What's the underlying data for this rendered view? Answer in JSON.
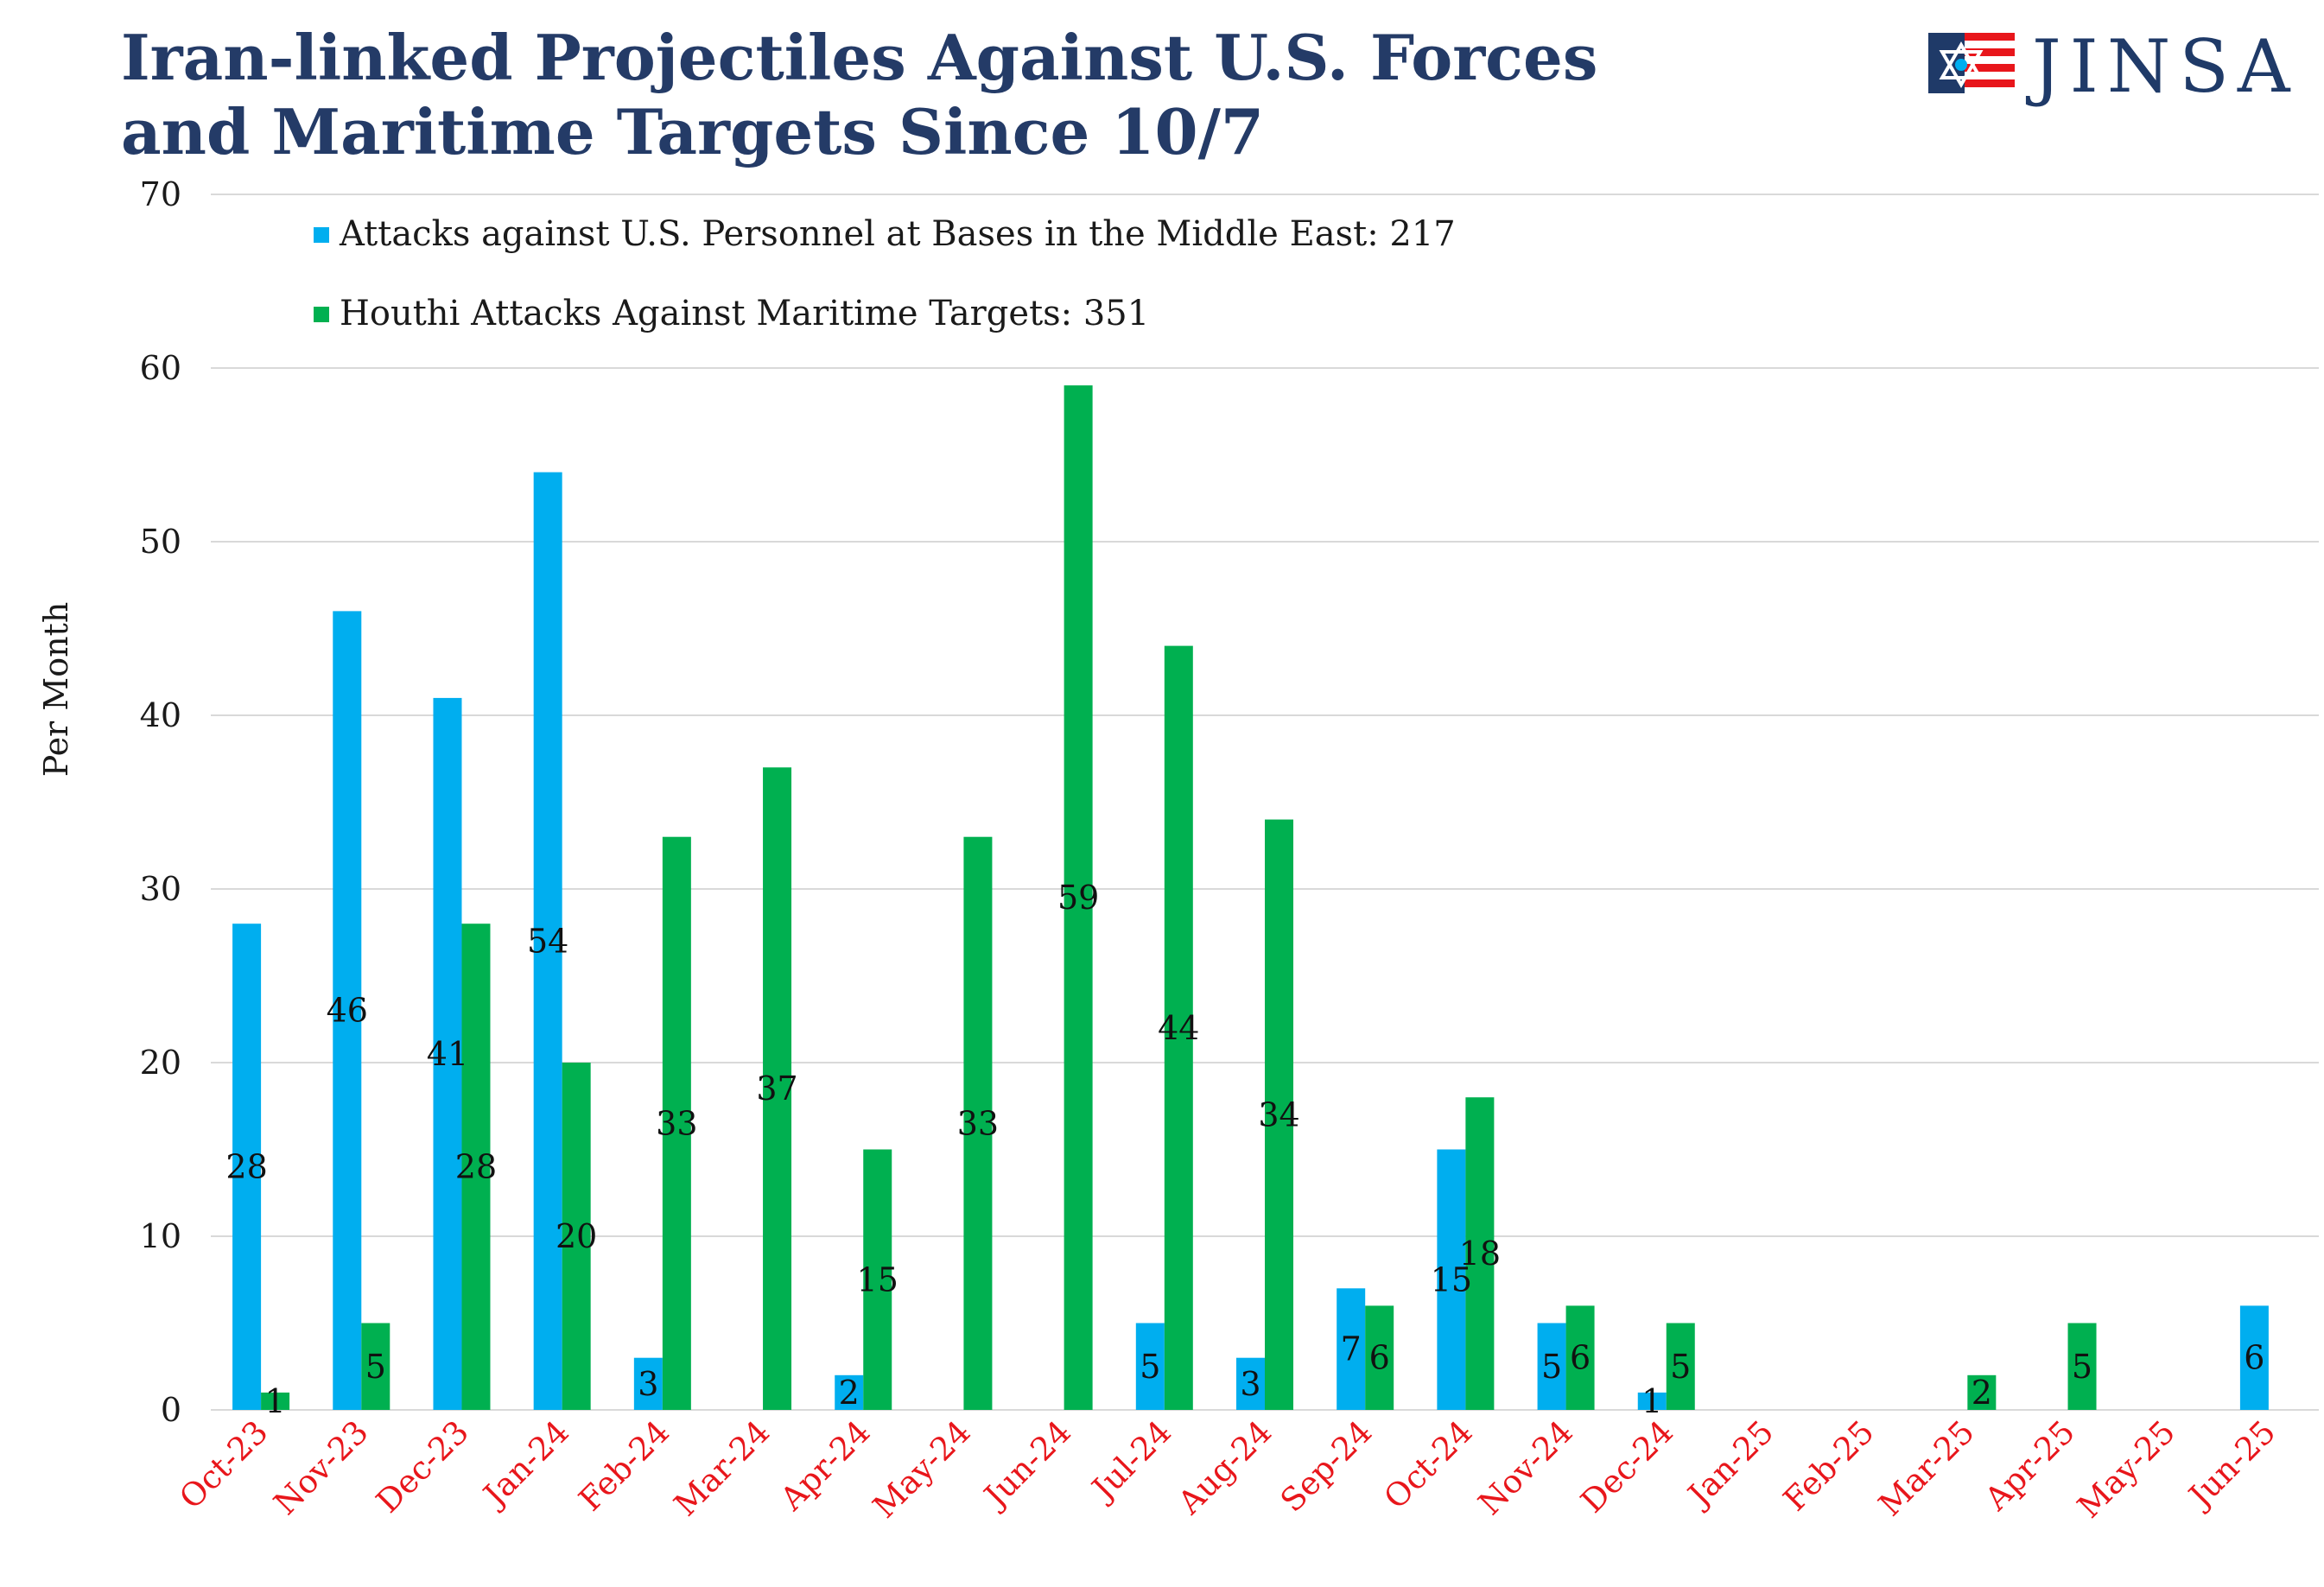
{
  "title": {
    "line1": "Iran-linked Projectiles Against U.S. Forces",
    "line2": "and Maritime Targets Since 10/7"
  },
  "logo": {
    "text": "JINSA",
    "icon": "jinsa-flag-star-icon"
  },
  "colors": {
    "title": "#243b67",
    "series_blue": "#00aeef",
    "series_green": "#00b050",
    "xtick": "#e8161b",
    "grid": "#d9d9d9"
  },
  "chart_data": {
    "type": "bar",
    "title": "Iran-linked Projectiles Against U.S. Forces and Maritime Targets Since 10/7",
    "xlabel": "",
    "ylabel": "Per Month",
    "ylim": [
      0,
      70
    ],
    "yticks": [
      0,
      10,
      20,
      30,
      40,
      50,
      60,
      70
    ],
    "grid": true,
    "legend_position": "top-left",
    "categories": [
      "Oct-23",
      "Nov-23",
      "Dec-23",
      "Jan-24",
      "Feb-24",
      "Mar-24",
      "Apr-24",
      "May-24",
      "Jun-24",
      "Jul-24",
      "Aug-24",
      "Sep-24",
      "Oct-24",
      "Nov-24",
      "Dec-24",
      "Jan-25",
      "Feb-25",
      "Mar-25",
      "Apr-25",
      "May-25",
      "Jun-25"
    ],
    "series": [
      {
        "name": "Attacks against U.S. Personnel at Bases in the Middle East: 217",
        "color": "#00aeef",
        "values": [
          28,
          46,
          41,
          54,
          3,
          0,
          2,
          0,
          0,
          5,
          3,
          7,
          15,
          5,
          1,
          0,
          0,
          0,
          0,
          0,
          6
        ]
      },
      {
        "name": "Houthi Attacks Against Maritime Targets: 351",
        "color": "#00b050",
        "values": [
          1,
          5,
          28,
          20,
          33,
          37,
          15,
          33,
          59,
          44,
          34,
          6,
          18,
          6,
          5,
          0,
          0,
          2,
          5,
          0,
          0
        ]
      }
    ]
  }
}
